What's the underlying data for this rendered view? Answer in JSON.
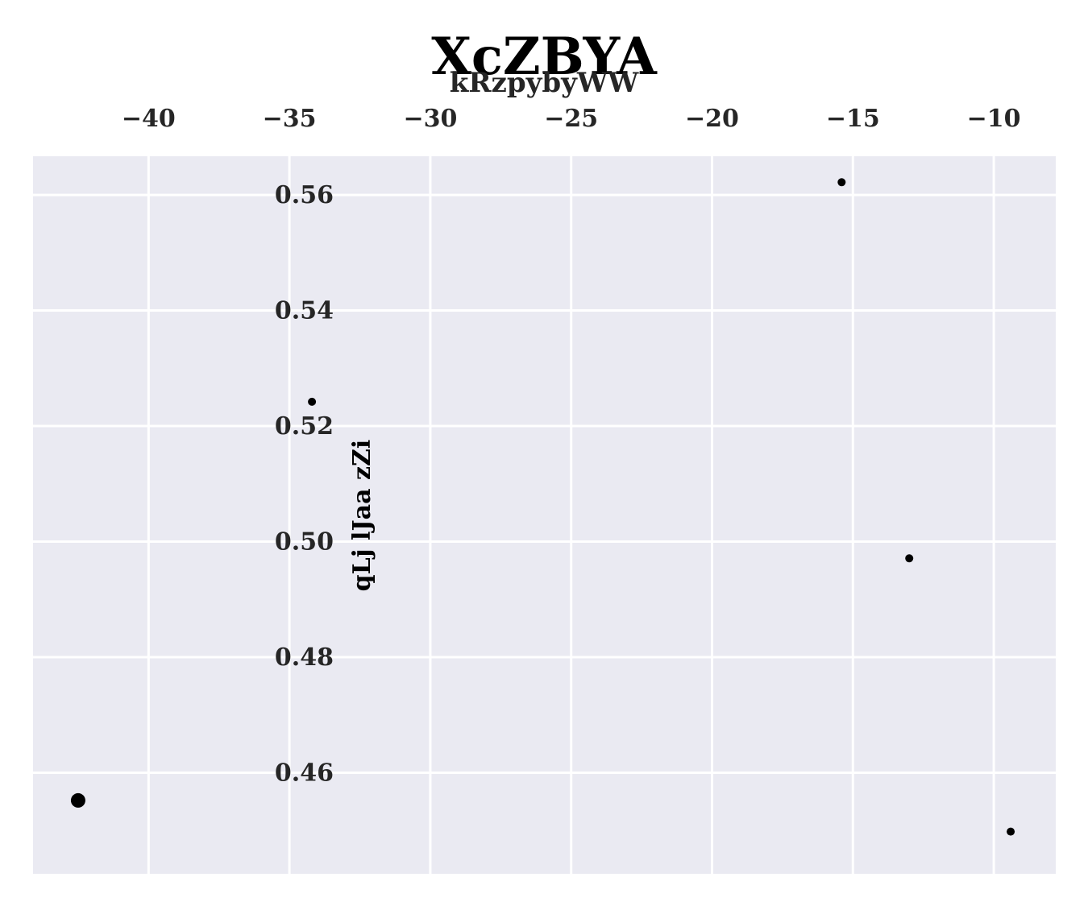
{
  "chart_data": {
    "type": "scatter",
    "title": "XcZBYA",
    "subtitle": "kRzpybyWW",
    "xlabel": "",
    "ylabel": "qLj lJaa zZi",
    "x_axis_position": "top",
    "xlim": [
      -44.1,
      -7.8
    ],
    "ylim": [
      0.4425,
      0.5667
    ],
    "x_ticks": [
      -40,
      -35,
      -30,
      -25,
      -20,
      -15,
      -10
    ],
    "x_tick_labels": [
      "−40",
      "−35",
      "−30",
      "−25",
      "−20",
      "−15",
      "−10"
    ],
    "y_ticks": [
      0.46,
      0.48,
      0.5,
      0.52,
      0.54,
      0.56
    ],
    "y_tick_labels": [
      "0.46",
      "0.48",
      "0.50",
      "0.52",
      "0.54",
      "0.56"
    ],
    "grid": true,
    "background": "#eaeaf2",
    "point_color": "#000000",
    "points": [
      {
        "x": -42.5,
        "y": 0.4552,
        "size": 9
      },
      {
        "x": -34.2,
        "y": 0.5242,
        "size": 5
      },
      {
        "x": -15.4,
        "y": 0.5622,
        "size": 5
      },
      {
        "x": -13.0,
        "y": 0.4971,
        "size": 5
      },
      {
        "x": -9.4,
        "y": 0.4498,
        "size": 5
      }
    ]
  }
}
